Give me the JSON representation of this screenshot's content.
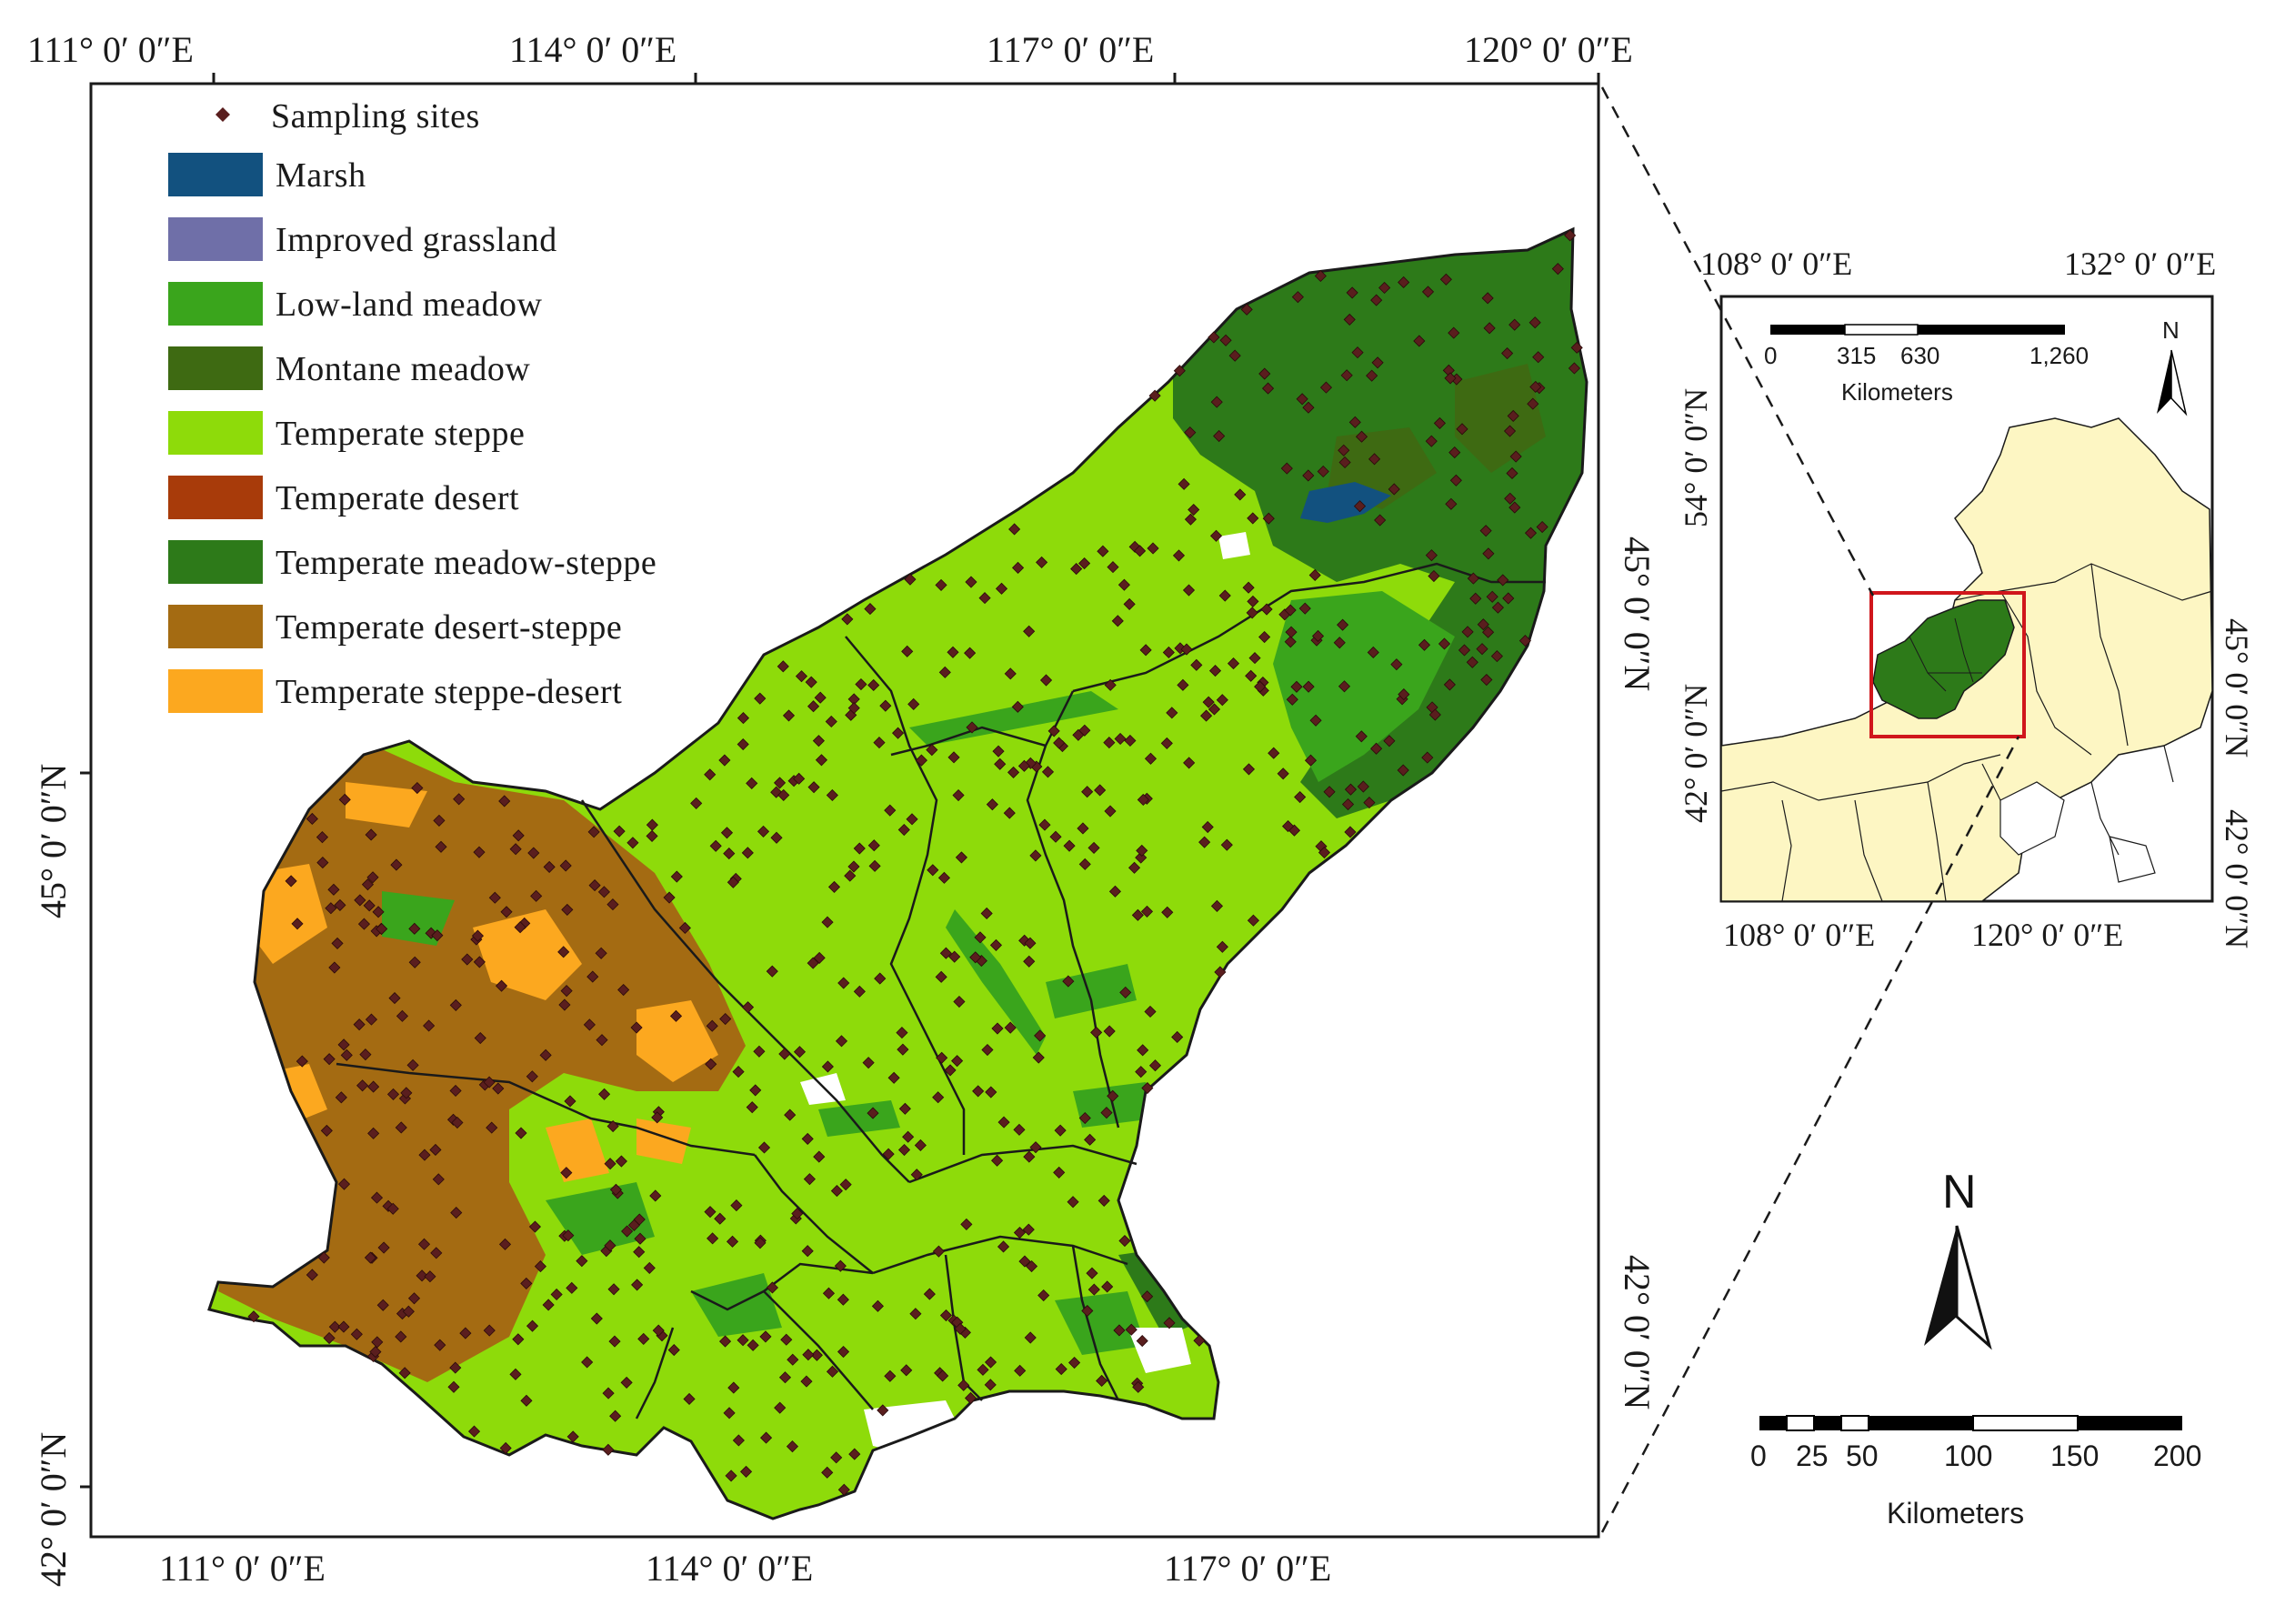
{
  "main_map": {
    "top_labels": [
      "111° 0′ 0″E",
      "114° 0′ 0″E",
      "117° 0′ 0″E",
      "120° 0′ 0″E"
    ],
    "bottom_labels": [
      "111° 0′ 0″E",
      "114° 0′ 0″E",
      "117° 0′ 0″E"
    ],
    "left_labels": [
      "45° 0′ 0″N",
      "42° 0′ 0″N"
    ],
    "right_labels": [
      "45° 0′ 0″N",
      "42° 0′ 0″N"
    ]
  },
  "legend": {
    "sites_label": "Sampling sites",
    "sites_color": "#5a1e1e",
    "items": [
      {
        "label": "Marsh",
        "color": "#12517f"
      },
      {
        "label": "Improved grassland",
        "color": "#6f6fa8"
      },
      {
        "label": "Low-land meadow",
        "color": "#3aa51c"
      },
      {
        "label": "Montane meadow",
        "color": "#3e6a12"
      },
      {
        "label": "Temperate steppe",
        "color": "#8edb0a"
      },
      {
        "label": "Temperate desert",
        "color": "#a83b0a"
      },
      {
        "label": "Temperate meadow-steppe",
        "color": "#2d7a19"
      },
      {
        "label": "Temperate desert-steppe",
        "color": "#a46b12"
      },
      {
        "label": "Temperate steppe-desert",
        "color": "#fca81f"
      }
    ]
  },
  "inset": {
    "top_labels": [
      "108° 0′ 0″E",
      "132° 0′ 0″E"
    ],
    "bottom_labels": [
      "108° 0′ 0″E",
      "120° 0′ 0″E"
    ],
    "left_labels": [
      "54° 0′ 0″N",
      "42° 0′ 0″N"
    ],
    "right_labels": [
      "45° 0′ 0″N",
      "42° 0′ 0″N"
    ],
    "scale_ticks": [
      "0",
      "315",
      "630",
      "1,260"
    ],
    "scale_unit": "Kilometers",
    "north_label": "N"
  },
  "main_scale": {
    "ticks": [
      "0",
      "25",
      "50",
      "100",
      "150",
      "200"
    ],
    "unit": "Kilometers"
  },
  "north_arrow": {
    "label": "N"
  },
  "colors": {
    "land_bg": "#fdf6c3",
    "frame": "#1a1a1a",
    "study_box": "#d0161c",
    "white_area": "#ffffff"
  }
}
